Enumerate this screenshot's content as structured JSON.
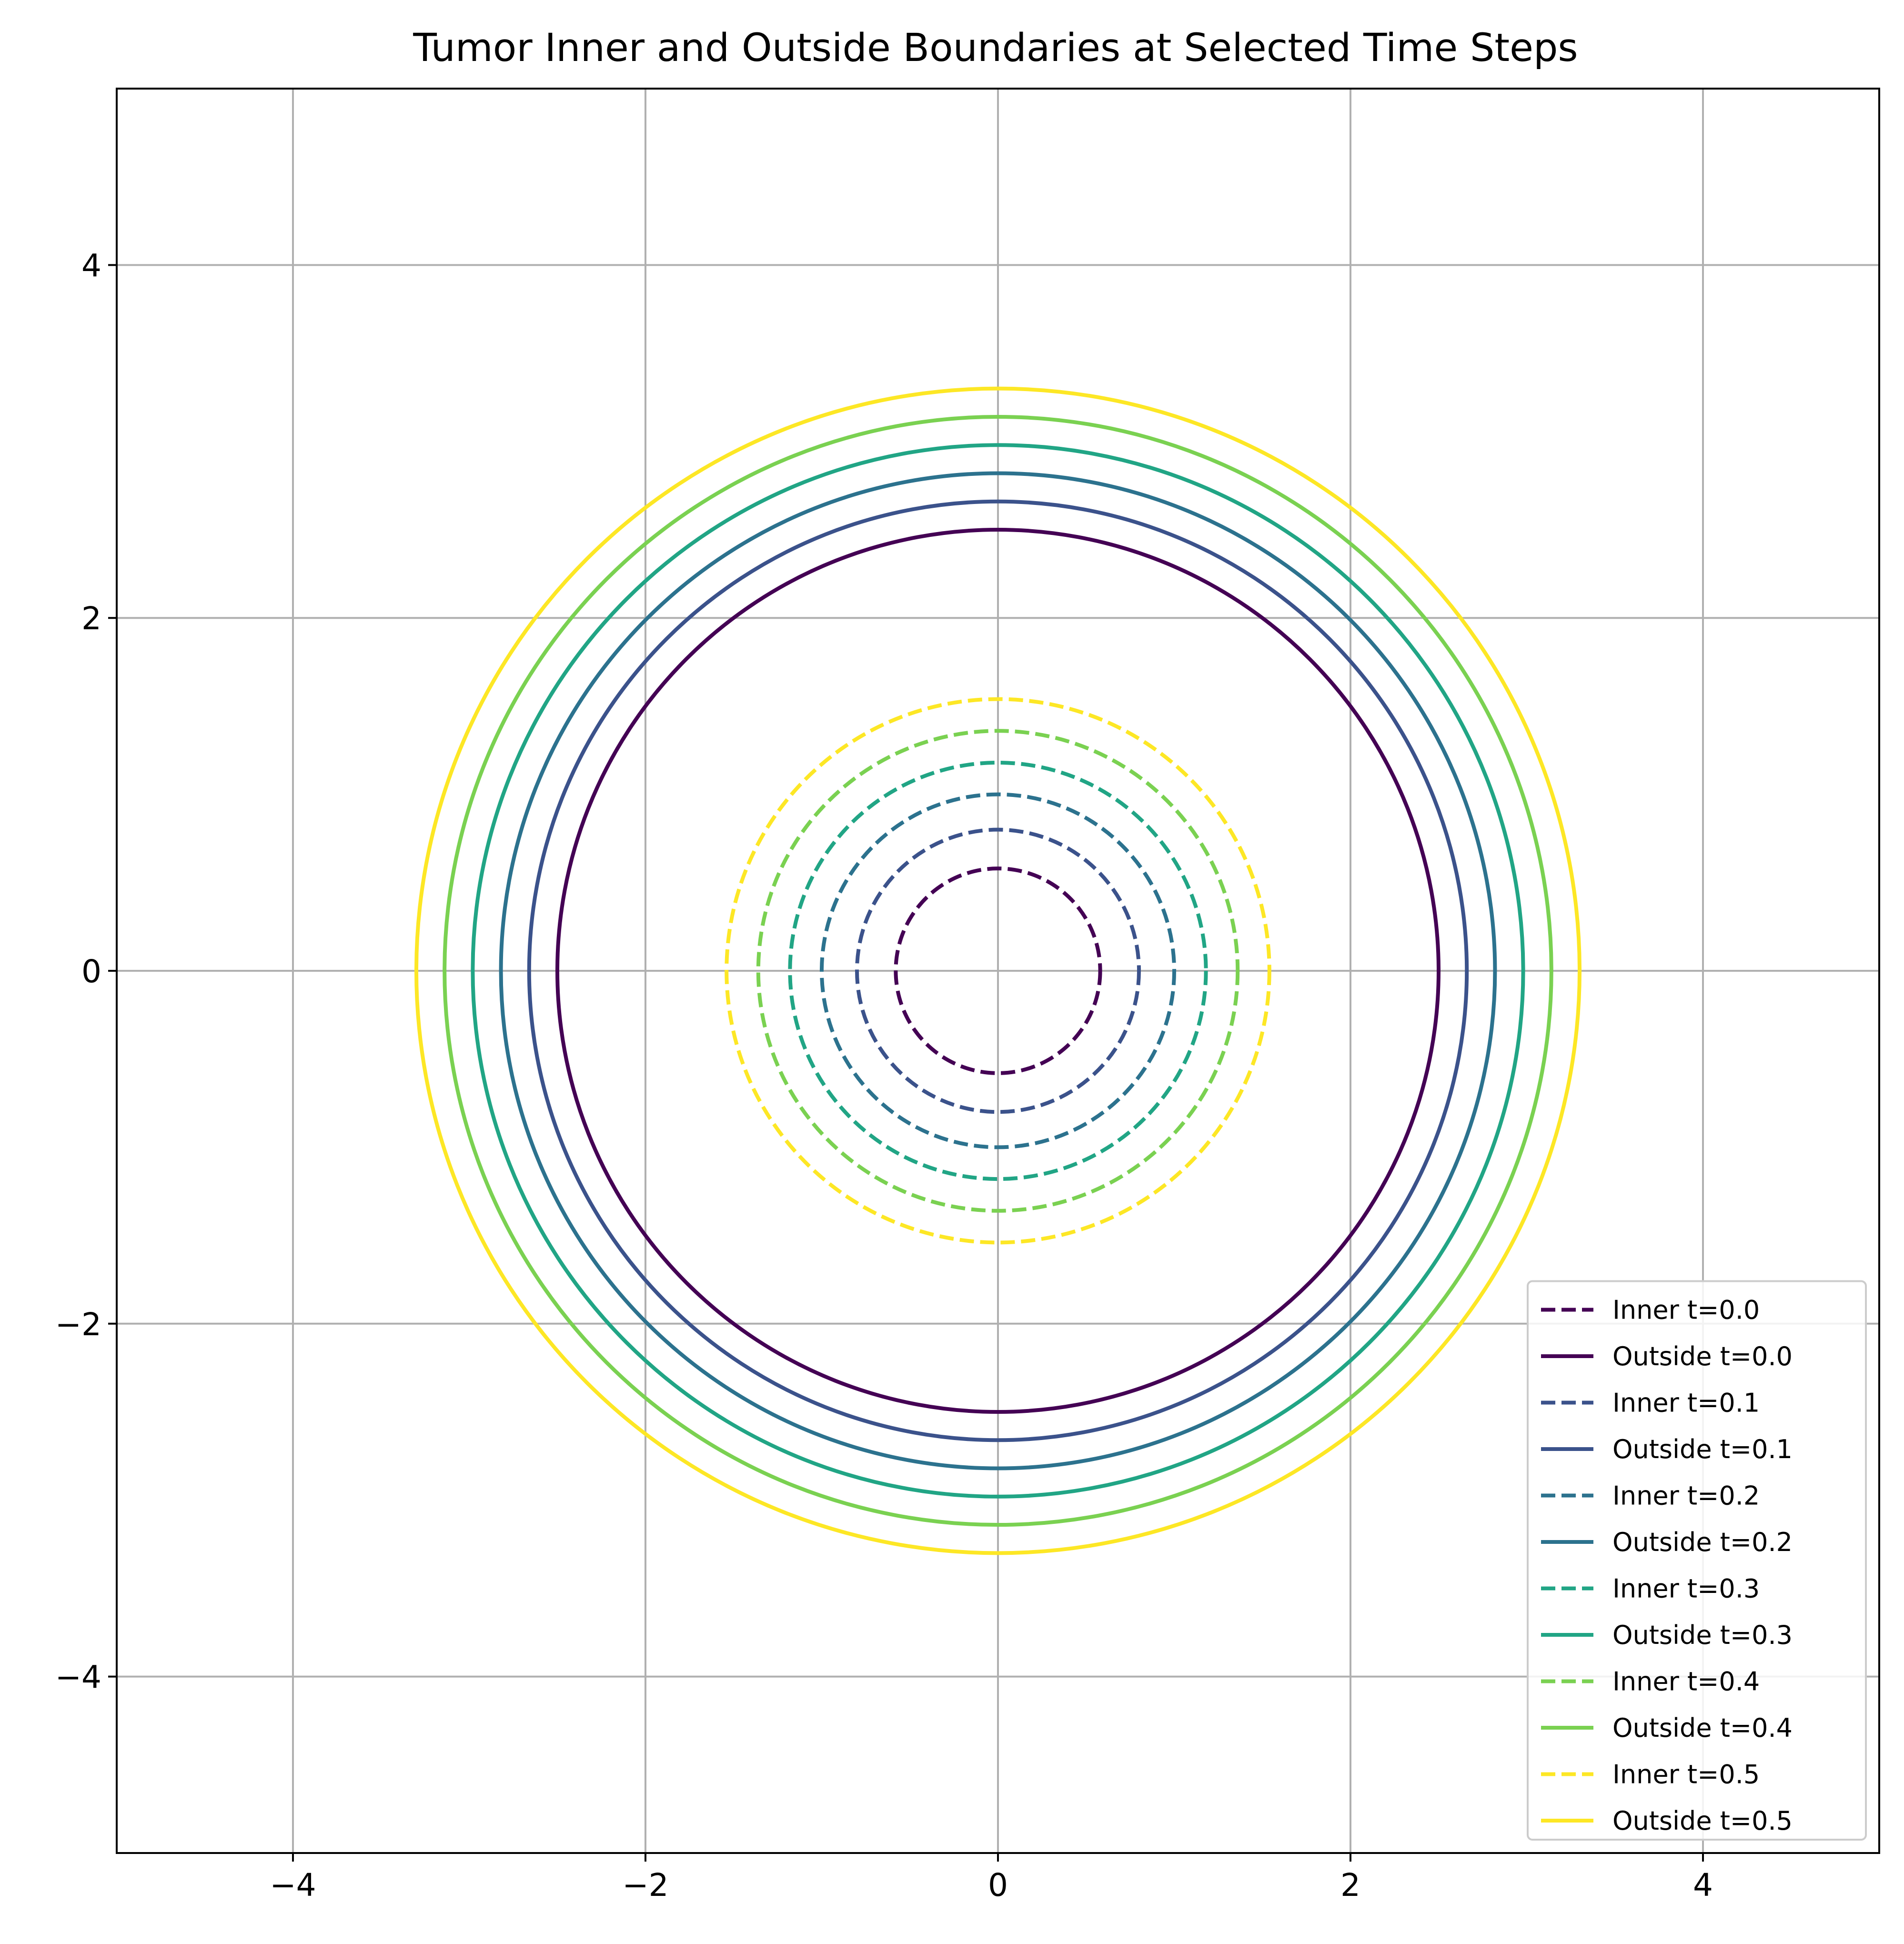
{
  "chart_data": {
    "type": "line",
    "title": "Tumor Inner and Outside Boundaries at Selected Time Steps",
    "xlabel": "",
    "ylabel": "",
    "xlim": [
      -5,
      5
    ],
    "ylim": [
      -5,
      5
    ],
    "xticks": [
      -4,
      -2,
      0,
      2,
      4
    ],
    "yticks": [
      -4,
      -2,
      0,
      2,
      4
    ],
    "tick_labels_x": [
      "−4",
      "−2",
      "0",
      "2",
      "4"
    ],
    "tick_labels_y": [
      "−4",
      "−2",
      "0",
      "2",
      "4"
    ],
    "grid": true,
    "legend_position": "lower-right",
    "series": [
      {
        "name": "Inner t=0.0",
        "shape": "circle",
        "center": [
          0,
          0
        ],
        "radius": 0.58,
        "style": "dashed",
        "color": "#440154"
      },
      {
        "name": "Outside t=0.0",
        "shape": "circle",
        "center": [
          0,
          0
        ],
        "radius": 2.5,
        "style": "solid",
        "color": "#440154"
      },
      {
        "name": "Inner t=0.1",
        "shape": "circle",
        "center": [
          0,
          0
        ],
        "radius": 0.8,
        "style": "dashed",
        "color": "#3b528b"
      },
      {
        "name": "Outside t=0.1",
        "shape": "circle",
        "center": [
          0,
          0
        ],
        "radius": 2.66,
        "style": "solid",
        "color": "#3b528b"
      },
      {
        "name": "Inner t=0.2",
        "shape": "circle",
        "center": [
          0,
          0
        ],
        "radius": 1.0,
        "style": "dashed",
        "color": "#2c728e"
      },
      {
        "name": "Outside t=0.2",
        "shape": "circle",
        "center": [
          0,
          0
        ],
        "radius": 2.82,
        "style": "solid",
        "color": "#2c728e"
      },
      {
        "name": "Inner t=0.3",
        "shape": "circle",
        "center": [
          0,
          0
        ],
        "radius": 1.18,
        "style": "dashed",
        "color": "#21a585"
      },
      {
        "name": "Outside t=0.3",
        "shape": "circle",
        "center": [
          0,
          0
        ],
        "radius": 2.98,
        "style": "solid",
        "color": "#21a585"
      },
      {
        "name": "Inner t=0.4",
        "shape": "circle",
        "center": [
          0,
          0
        ],
        "radius": 1.36,
        "style": "dashed",
        "color": "#7ad151"
      },
      {
        "name": "Outside t=0.4",
        "shape": "circle",
        "center": [
          0,
          0
        ],
        "radius": 3.14,
        "style": "solid",
        "color": "#7ad151"
      },
      {
        "name": "Inner t=0.5",
        "shape": "circle",
        "center": [
          0,
          0
        ],
        "radius": 1.54,
        "style": "dashed",
        "color": "#fde725"
      },
      {
        "name": "Outside t=0.5",
        "shape": "circle",
        "center": [
          0,
          0
        ],
        "radius": 3.3,
        "style": "solid",
        "color": "#fde725"
      }
    ]
  }
}
